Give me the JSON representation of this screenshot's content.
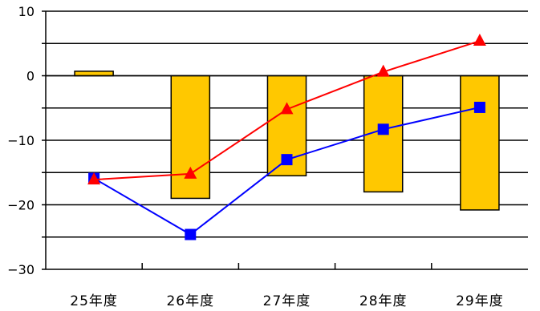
{
  "chart_data": {
    "type": "bar+line",
    "title": "",
    "xlabel": "",
    "ylabel": "",
    "ylim": [
      -30,
      10
    ],
    "y_ticks": [
      10,
      0,
      -10,
      -20,
      -30
    ],
    "y_tick_labels": [
      "10",
      "0",
      "−10",
      "−20",
      "−30"
    ],
    "grid": true,
    "legend": "none",
    "categories": [
      "25年度",
      "26年度",
      "27年度",
      "28年度",
      "29年度"
    ],
    "bars": {
      "color": "#ffc800",
      "values": [
        0.7,
        -19,
        -15.5,
        -18,
        -20.8
      ]
    },
    "series": [
      {
        "marker": "square",
        "color": "#0000ff",
        "values": [
          -15.9,
          -24.6,
          -13,
          -8.3,
          -4.9
        ]
      },
      {
        "marker": "triangle",
        "color": "#ff0000",
        "values": [
          -16.1,
          -15.2,
          -5.2,
          0.6,
          5.4
        ]
      }
    ]
  }
}
